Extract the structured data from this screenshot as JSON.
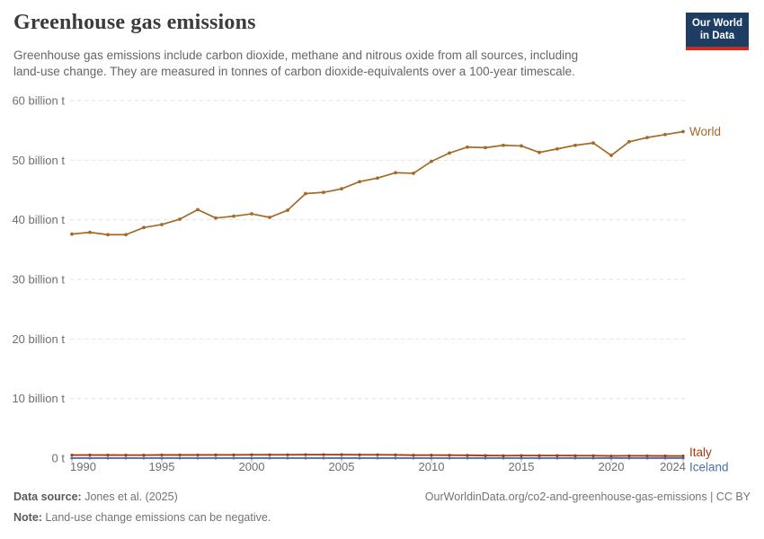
{
  "header": {
    "title": "Greenhouse gas emissions",
    "subtitle_lines": [
      "Greenhouse gas emissions include carbon dioxide, methane and nitrous oxide from all sources, including",
      "land-use change. They are measured in tonnes of carbon dioxide-equivalents over a 100-year timescale."
    ],
    "logo": {
      "line1": "Our World",
      "line2": "in Data",
      "bg": "#1D3D63",
      "accent": "#CE2A20"
    }
  },
  "chart_data": {
    "type": "line",
    "x": [
      1990,
      1991,
      1992,
      1993,
      1994,
      1995,
      1996,
      1997,
      1998,
      1999,
      2000,
      2001,
      2002,
      2003,
      2004,
      2005,
      2006,
      2007,
      2008,
      2009,
      2010,
      2011,
      2012,
      2013,
      2014,
      2015,
      2016,
      2017,
      2018,
      2019,
      2020,
      2021,
      2022,
      2023,
      2024
    ],
    "series": [
      {
        "name": "World",
        "color": "#A46A28",
        "unit": "billion t",
        "values": [
          37.6,
          37.9,
          37.5,
          37.5,
          38.7,
          39.2,
          40.1,
          41.7,
          40.3,
          40.6,
          41.0,
          40.4,
          41.6,
          44.4,
          44.6,
          45.2,
          46.4,
          47.0,
          47.9,
          47.8,
          49.8,
          51.2,
          52.2,
          52.1,
          52.5,
          52.4,
          51.3,
          51.9,
          52.5,
          52.9,
          50.8,
          53.1,
          53.8,
          54.3,
          54.8
        ]
      },
      {
        "name": "Italy",
        "color": "#B13507",
        "unit": "billion t",
        "values": [
          0.52,
          0.53,
          0.52,
          0.51,
          0.51,
          0.54,
          0.54,
          0.54,
          0.55,
          0.55,
          0.56,
          0.56,
          0.56,
          0.58,
          0.58,
          0.58,
          0.57,
          0.56,
          0.55,
          0.5,
          0.51,
          0.5,
          0.48,
          0.44,
          0.42,
          0.43,
          0.43,
          0.43,
          0.42,
          0.41,
          0.37,
          0.4,
          0.39,
          0.37,
          0.36
        ]
      },
      {
        "name": "Iceland",
        "color": "#4C70AC",
        "unit": "billion t",
        "values": [
          0.01,
          0.01,
          0.01,
          0.01,
          0.01,
          0.01,
          0.01,
          0.01,
          0.01,
          0.01,
          0.01,
          0.01,
          0.01,
          0.01,
          0.01,
          0.01,
          0.01,
          0.01,
          0.01,
          0.01,
          0.01,
          0.01,
          0.01,
          0.01,
          0.01,
          0.01,
          0.01,
          0.01,
          0.01,
          0.01,
          0.01,
          0.01,
          0.01,
          0.01,
          0.01
        ]
      }
    ],
    "yticks": [
      {
        "value": 0,
        "label": "0 t"
      },
      {
        "value": 10,
        "label": "10 billion t"
      },
      {
        "value": 20,
        "label": "20 billion t"
      },
      {
        "value": 30,
        "label": "30 billion t"
      },
      {
        "value": 40,
        "label": "40 billion t"
      },
      {
        "value": 50,
        "label": "50 billion t"
      },
      {
        "value": 60,
        "label": "60 billion t"
      }
    ],
    "xticks": [
      1990,
      1995,
      2000,
      2005,
      2010,
      2015,
      2020,
      2024
    ],
    "ylim": [
      0,
      60
    ],
    "xlim": [
      1990,
      2024
    ],
    "grid": "horizontal-dashed",
    "legend_position": "right-of-line",
    "label_dy": {
      "World": 0,
      "Italy": -4,
      "Iceland": 10
    },
    "colors": {
      "gridline": "#E2E2E2",
      "zeroline": "#9C9C9C",
      "tick": "#B8B8B8",
      "axis_text": "#6E6E6E"
    }
  },
  "footer": {
    "datasource_label": "Data source:",
    "datasource_value": " Jones et al. (2025)",
    "note_label": "Note:",
    "note_value": " Land-use change emissions can be negative.",
    "link": "OurWorldinData.org/co2-and-greenhouse-gas-emissions | CC BY"
  }
}
